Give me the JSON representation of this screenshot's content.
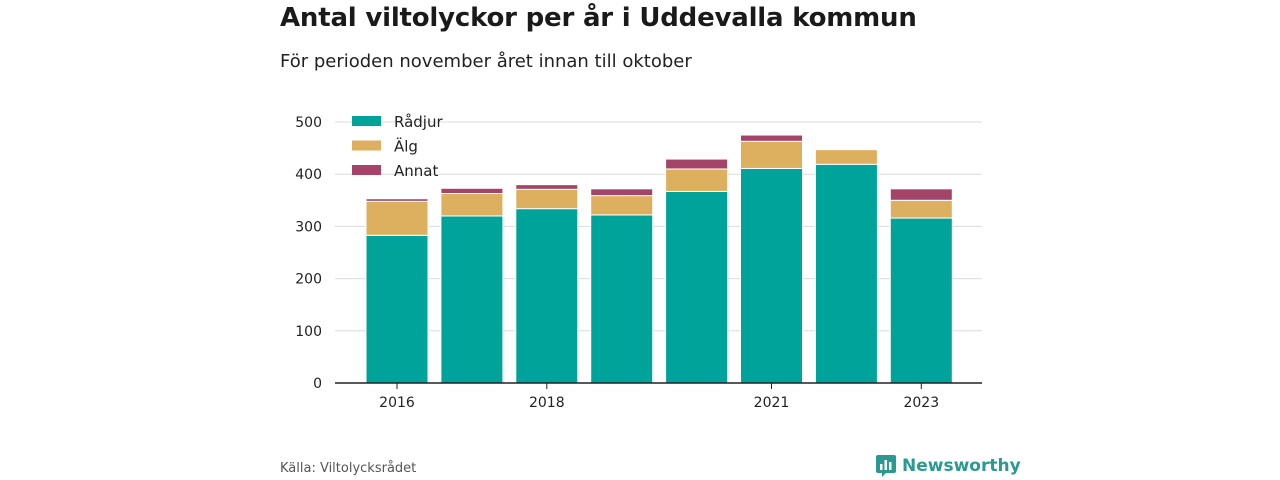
{
  "title": "Antal viltolyckor per år i Uddevalla kommun",
  "subtitle": "För perioden november året innan till oktober",
  "source": "Källa: Viltolycksrådet",
  "brand": {
    "name": "Newsworthy",
    "icon": "chart-bubble-icon",
    "color": "#2a9a91"
  },
  "chart_data": {
    "type": "bar",
    "stacked": true,
    "categories": [
      "2016",
      "2017",
      "2018",
      "2019",
      "2020",
      "2021",
      "2022",
      "2023"
    ],
    "x_tick_labels": [
      "2016",
      "",
      "2018",
      "",
      "",
      "2021",
      "",
      "2023"
    ],
    "series": [
      {
        "name": "Rådjur",
        "color": "#00a39a",
        "values": [
          283,
          320,
          334,
          322,
          367,
          411,
          419,
          316
        ]
      },
      {
        "name": "Älg",
        "color": "#dcb05e",
        "values": [
          65,
          43,
          37,
          37,
          43,
          52,
          28,
          34
        ]
      },
      {
        "name": "Annat",
        "color": "#a5446a",
        "values": [
          5,
          10,
          9,
          13,
          19,
          12,
          0,
          22
        ]
      }
    ],
    "ylim": [
      0,
      500
    ],
    "yticks": [
      0,
      100,
      200,
      300,
      400,
      500
    ],
    "grid": true,
    "legend": "top-left"
  }
}
